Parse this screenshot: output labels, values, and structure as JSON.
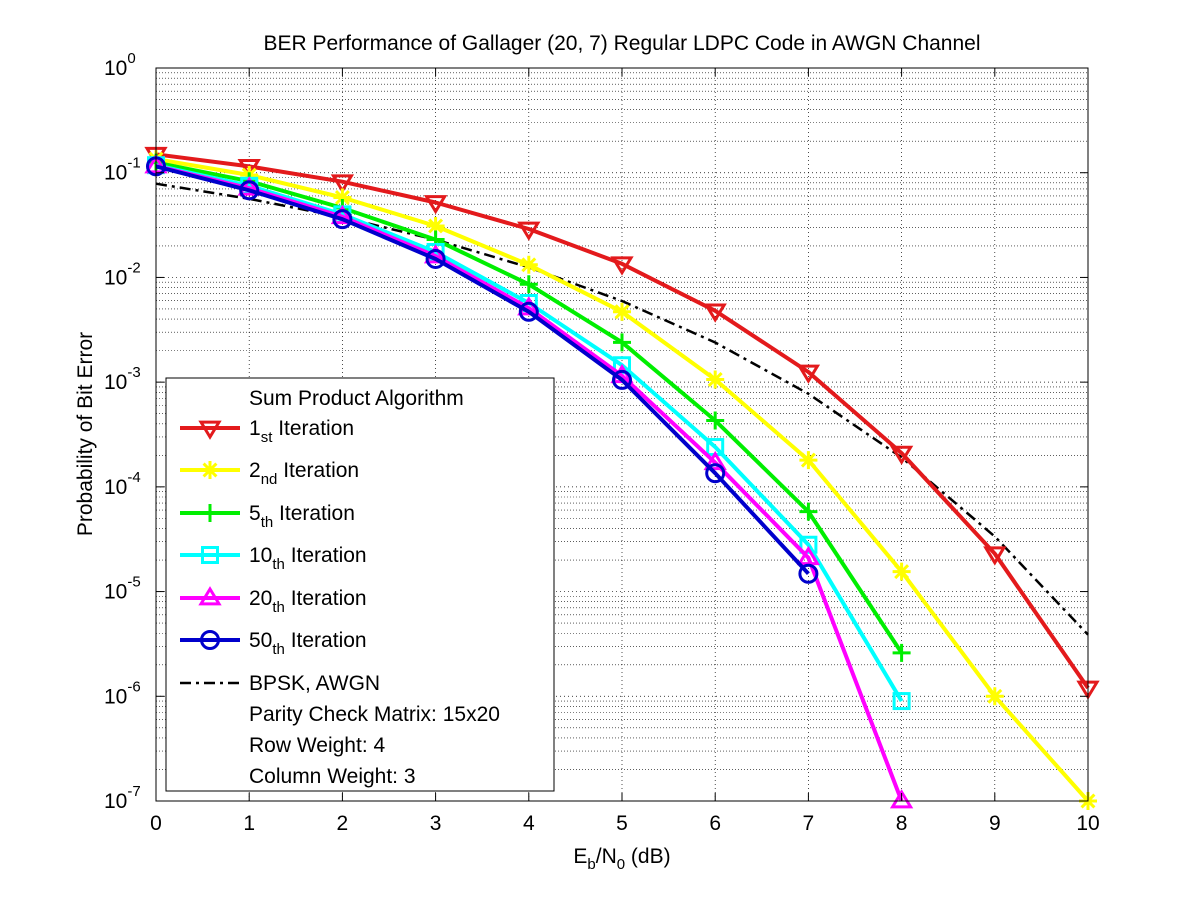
{
  "chart_data": {
    "type": "line",
    "title": "BER Performance of Gallager (20, 7) Regular LDPC Code in AWGN Channel",
    "xlabel": "E_b/N_0 (dB)",
    "xlabel_parts": {
      "e": "E",
      "b": "b",
      "slash": "/N",
      "zero": "0",
      "unit": " (dB)"
    },
    "ylabel": "Probability of Bit Error",
    "xlim": [
      0,
      10
    ],
    "ylim_log10": [
      -7,
      0
    ],
    "yscale": "log",
    "grid": true,
    "minor_grid": true,
    "legend_placement": "lower-left",
    "x_ticks": [
      "0",
      "1",
      "2",
      "3",
      "4",
      "5",
      "6",
      "7",
      "8",
      "9",
      "10"
    ],
    "y_ticks": [
      {
        "base": "10",
        "exp": "0",
        "log": 0
      },
      {
        "base": "10",
        "exp": "-1",
        "log": -1
      },
      {
        "base": "10",
        "exp": "-2",
        "log": -2
      },
      {
        "base": "10",
        "exp": "-3",
        "log": -3
      },
      {
        "base": "10",
        "exp": "-4",
        "log": -4
      },
      {
        "base": "10",
        "exp": "-5",
        "log": -5
      },
      {
        "base": "10",
        "exp": "-6",
        "log": -6
      },
      {
        "base": "10",
        "exp": "-7",
        "log": -7
      }
    ],
    "series": [
      {
        "name": "1st Iteration",
        "num": "1",
        "sub": "st",
        "rest": " Iteration",
        "color": "#e31a1c",
        "marker": "triangle-down",
        "x": [
          0,
          1,
          2,
          3,
          4,
          5,
          6,
          7,
          8,
          9,
          10
        ],
        "y": [
          0.15,
          0.115,
          0.082,
          0.052,
          0.029,
          0.0135,
          0.0048,
          0.00125,
          0.00021,
          2.3e-05,
          1.2e-06
        ]
      },
      {
        "name": "2nd Iteration",
        "num": "2",
        "sub": "nd",
        "rest": " Iteration",
        "color": "#ffff00",
        "marker": "asterisk",
        "x": [
          0,
          1,
          2,
          3,
          4,
          5,
          6,
          7,
          8,
          9,
          10
        ],
        "y": [
          0.135,
          0.095,
          0.058,
          0.031,
          0.0132,
          0.0047,
          0.00106,
          0.00018,
          1.55e-05,
          1e-06,
          1e-07
        ]
      },
      {
        "name": "5th Iteration",
        "num": "5",
        "sub": "th",
        "rest": " Iteration",
        "color": "#00ee00",
        "marker": "plus",
        "x": [
          0,
          1,
          2,
          3,
          4,
          5,
          6,
          7,
          8
        ],
        "y": [
          0.125,
          0.083,
          0.046,
          0.023,
          0.0086,
          0.0024,
          0.00043,
          5.8e-05,
          2.6e-06
        ]
      },
      {
        "name": "10th Iteration",
        "num": "10",
        "sub": "th",
        "rest": " Iteration",
        "color": "#00ffff",
        "marker": "square",
        "x": [
          0,
          1,
          2,
          3,
          4,
          5,
          6,
          7,
          8
        ],
        "y": [
          0.118,
          0.075,
          0.04,
          0.0175,
          0.0057,
          0.00145,
          0.00024,
          2.8e-05,
          9e-07
        ]
      },
      {
        "name": "20th Iteration",
        "num": "20",
        "sub": "th",
        "rest": " Iteration",
        "color": "#ff00ff",
        "marker": "triangle-up",
        "x": [
          0,
          1,
          2,
          3,
          4,
          5,
          6,
          7,
          8
        ],
        "y": [
          0.116,
          0.071,
          0.038,
          0.016,
          0.0051,
          0.00115,
          0.00017,
          2.1e-05,
          1e-07
        ]
      },
      {
        "name": "50th Iteration",
        "num": "50",
        "sub": "th",
        "rest": " Iteration",
        "color": "#0000cc",
        "marker": "circle",
        "x": [
          0,
          1,
          2,
          3,
          4,
          5,
          6,
          7
        ],
        "y": [
          0.115,
          0.068,
          0.036,
          0.015,
          0.0047,
          0.00105,
          0.000135,
          1.48e-05
        ]
      },
      {
        "name": "BPSK, AWGN",
        "num": "",
        "sub": "",
        "rest": "BPSK, AWGN",
        "color": "#000000",
        "marker": "none",
        "dash": "dashdot",
        "x": [
          0,
          1,
          2,
          3,
          4,
          5,
          6,
          7,
          8,
          9,
          10
        ],
        "y": [
          0.0786,
          0.0563,
          0.0375,
          0.0229,
          0.0125,
          0.00595,
          0.00239,
          0.000774,
          0.000191,
          3.36e-05,
          3.87e-06
        ]
      }
    ],
    "legend_title": "Sum Product Algorithm",
    "legend_notes": [
      "Parity Check Matrix: 15x20",
      "Row Weight: 4",
      "Column Weight: 3"
    ]
  }
}
